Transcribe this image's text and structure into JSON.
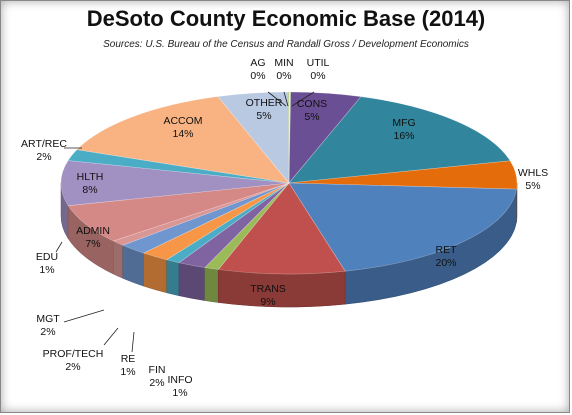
{
  "chart_data": {
    "type": "pie",
    "title": "DeSoto County Economic Base (2014)",
    "subtitle": "Sources: U.S. Bureau of the Census and Randall Gross / Development Economics",
    "legend": "none",
    "slices": [
      {
        "name": "MIN",
        "value": 0,
        "label": "0%",
        "color": "#e5e0ec"
      },
      {
        "name": "UTIL",
        "value": 0,
        "label": "0%",
        "color": "#c3d69b"
      },
      {
        "name": "CONS",
        "value": 5,
        "label": "5%",
        "color": "#6b4f94"
      },
      {
        "name": "MFG",
        "value": 16,
        "label": "16%",
        "color": "#31859c"
      },
      {
        "name": "WHLS",
        "value": 5,
        "label": "5%",
        "color": "#e46c0a"
      },
      {
        "name": "RET",
        "value": 20,
        "label": "20%",
        "color": "#4f81bd"
      },
      {
        "name": "TRANS",
        "value": 9,
        "label": "9%",
        "color": "#c0504d"
      },
      {
        "name": "INFO",
        "value": 1,
        "label": "1%",
        "color": "#9bbb59"
      },
      {
        "name": "FIN",
        "value": 2,
        "label": "2%",
        "color": "#8064a2"
      },
      {
        "name": "RE",
        "value": 1,
        "label": "1%",
        "color": "#4bacc6"
      },
      {
        "name": "PROF/TECH",
        "value": 2,
        "label": "2%",
        "color": "#f79646"
      },
      {
        "name": "MGT",
        "value": 2,
        "label": "2%",
        "color": "#6f96cf"
      },
      {
        "name": "EDU",
        "value": 1,
        "label": "1%",
        "color": "#d99694"
      },
      {
        "name": "ADMIN",
        "value": 7,
        "label": "7%",
        "color": "#d58987"
      },
      {
        "name": "HLTH",
        "value": 8,
        "label": "8%",
        "color": "#a191c2"
      },
      {
        "name": "ART/REC",
        "value": 2,
        "label": "2%",
        "color": "#4bacc6"
      },
      {
        "name": "ACCOM",
        "value": 14,
        "label": "14%",
        "color": "#f9b382"
      },
      {
        "name": "OTHER",
        "value": 5,
        "label": "5%",
        "color": "#b9c9e2"
      },
      {
        "name": "AG",
        "value": 0,
        "label": "0%",
        "color": "#98b954"
      }
    ]
  }
}
